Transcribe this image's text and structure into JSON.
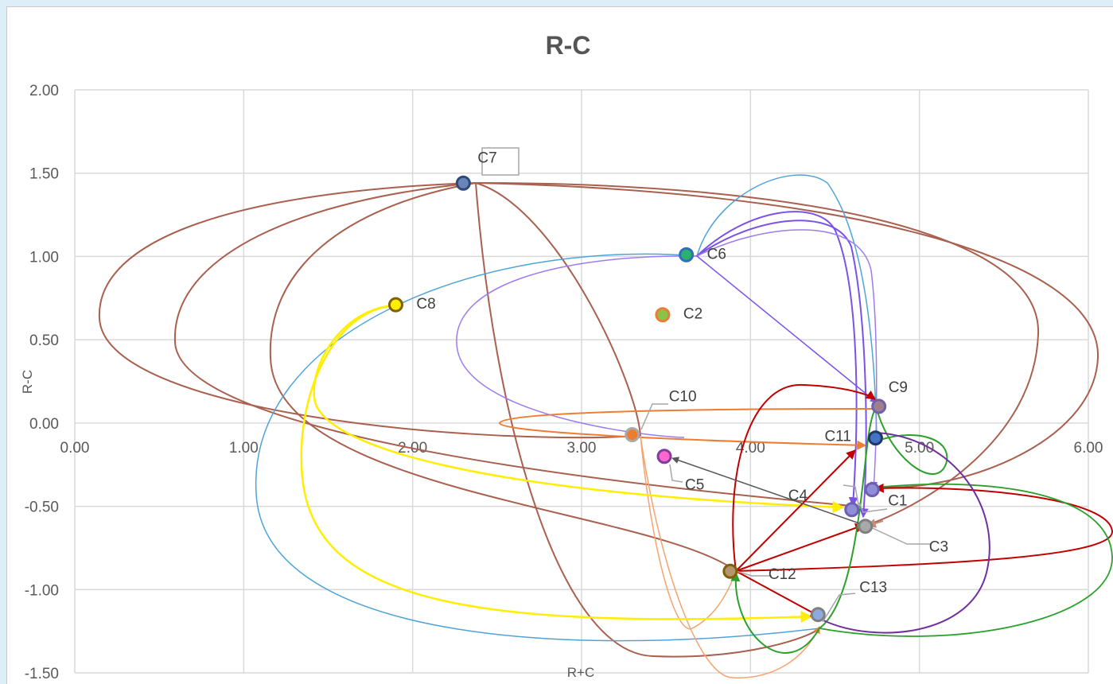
{
  "chart_data": {
    "type": "scatter",
    "title": "R-C",
    "xlabel": "R+C",
    "ylabel": "R-C",
    "xlim": [
      0,
      6
    ],
    "ylim": [
      -1.5,
      2
    ],
    "grid": true,
    "x_ticks": [
      "0.00",
      "1.00",
      "2.00",
      "3.00",
      "4.00",
      "5.00",
      "6.00"
    ],
    "y_ticks": [
      "2.00",
      "1.50",
      "1.00",
      "0.50",
      "0.00",
      "-0.50",
      "-1.00",
      "-1.50"
    ],
    "points": [
      {
        "label": "C1",
        "x": 4.72,
        "y": -0.4,
        "fill": "#8e8fd6",
        "stroke": "#6f5fb0"
      },
      {
        "label": "C2",
        "x": 3.48,
        "y": 0.65,
        "fill": "#8bc34a",
        "stroke": "#ed7d31"
      },
      {
        "label": "C3",
        "x": 4.68,
        "y": -0.62,
        "fill": "#a9a9a9",
        "stroke": "#7f7f7f"
      },
      {
        "label": "C4",
        "x": 4.6,
        "y": -0.52,
        "fill": "#8e8fd6",
        "stroke": "#6f5fb0"
      },
      {
        "label": "C5",
        "x": 3.49,
        "y": -0.2,
        "fill": "#ff66cc",
        "stroke": "#7b3fa0"
      },
      {
        "label": "C6",
        "x": 3.62,
        "y": 1.01,
        "fill": "#2ab06f",
        "stroke": "#2f6eba"
      },
      {
        "label": "C7",
        "x": 2.3,
        "y": 1.44,
        "fill": "#6a86b8",
        "stroke": "#2e4a78"
      },
      {
        "label": "C8",
        "x": 1.9,
        "y": 0.71,
        "fill": "#ffee00",
        "stroke": "#7f6000"
      },
      {
        "label": "C9",
        "x": 4.76,
        "y": 0.1,
        "fill": "#9e7f8c",
        "stroke": "#6f5fb0"
      },
      {
        "label": "C10",
        "x": 3.3,
        "y": -0.07,
        "fill": "#ed7d31",
        "stroke": "#a9a9a9"
      },
      {
        "label": "C11",
        "x": 4.74,
        "y": -0.09,
        "fill": "#4472c4",
        "stroke": "#1f3864"
      },
      {
        "label": "C12",
        "x": 3.88,
        "y": -0.89,
        "fill": "#b5946e",
        "stroke": "#7f6000"
      },
      {
        "label": "C13",
        "x": 4.4,
        "y": -1.15,
        "fill": "#8ea9db",
        "stroke": "#7f7f7f"
      }
    ],
    "annotations": [
      "C7"
    ]
  }
}
